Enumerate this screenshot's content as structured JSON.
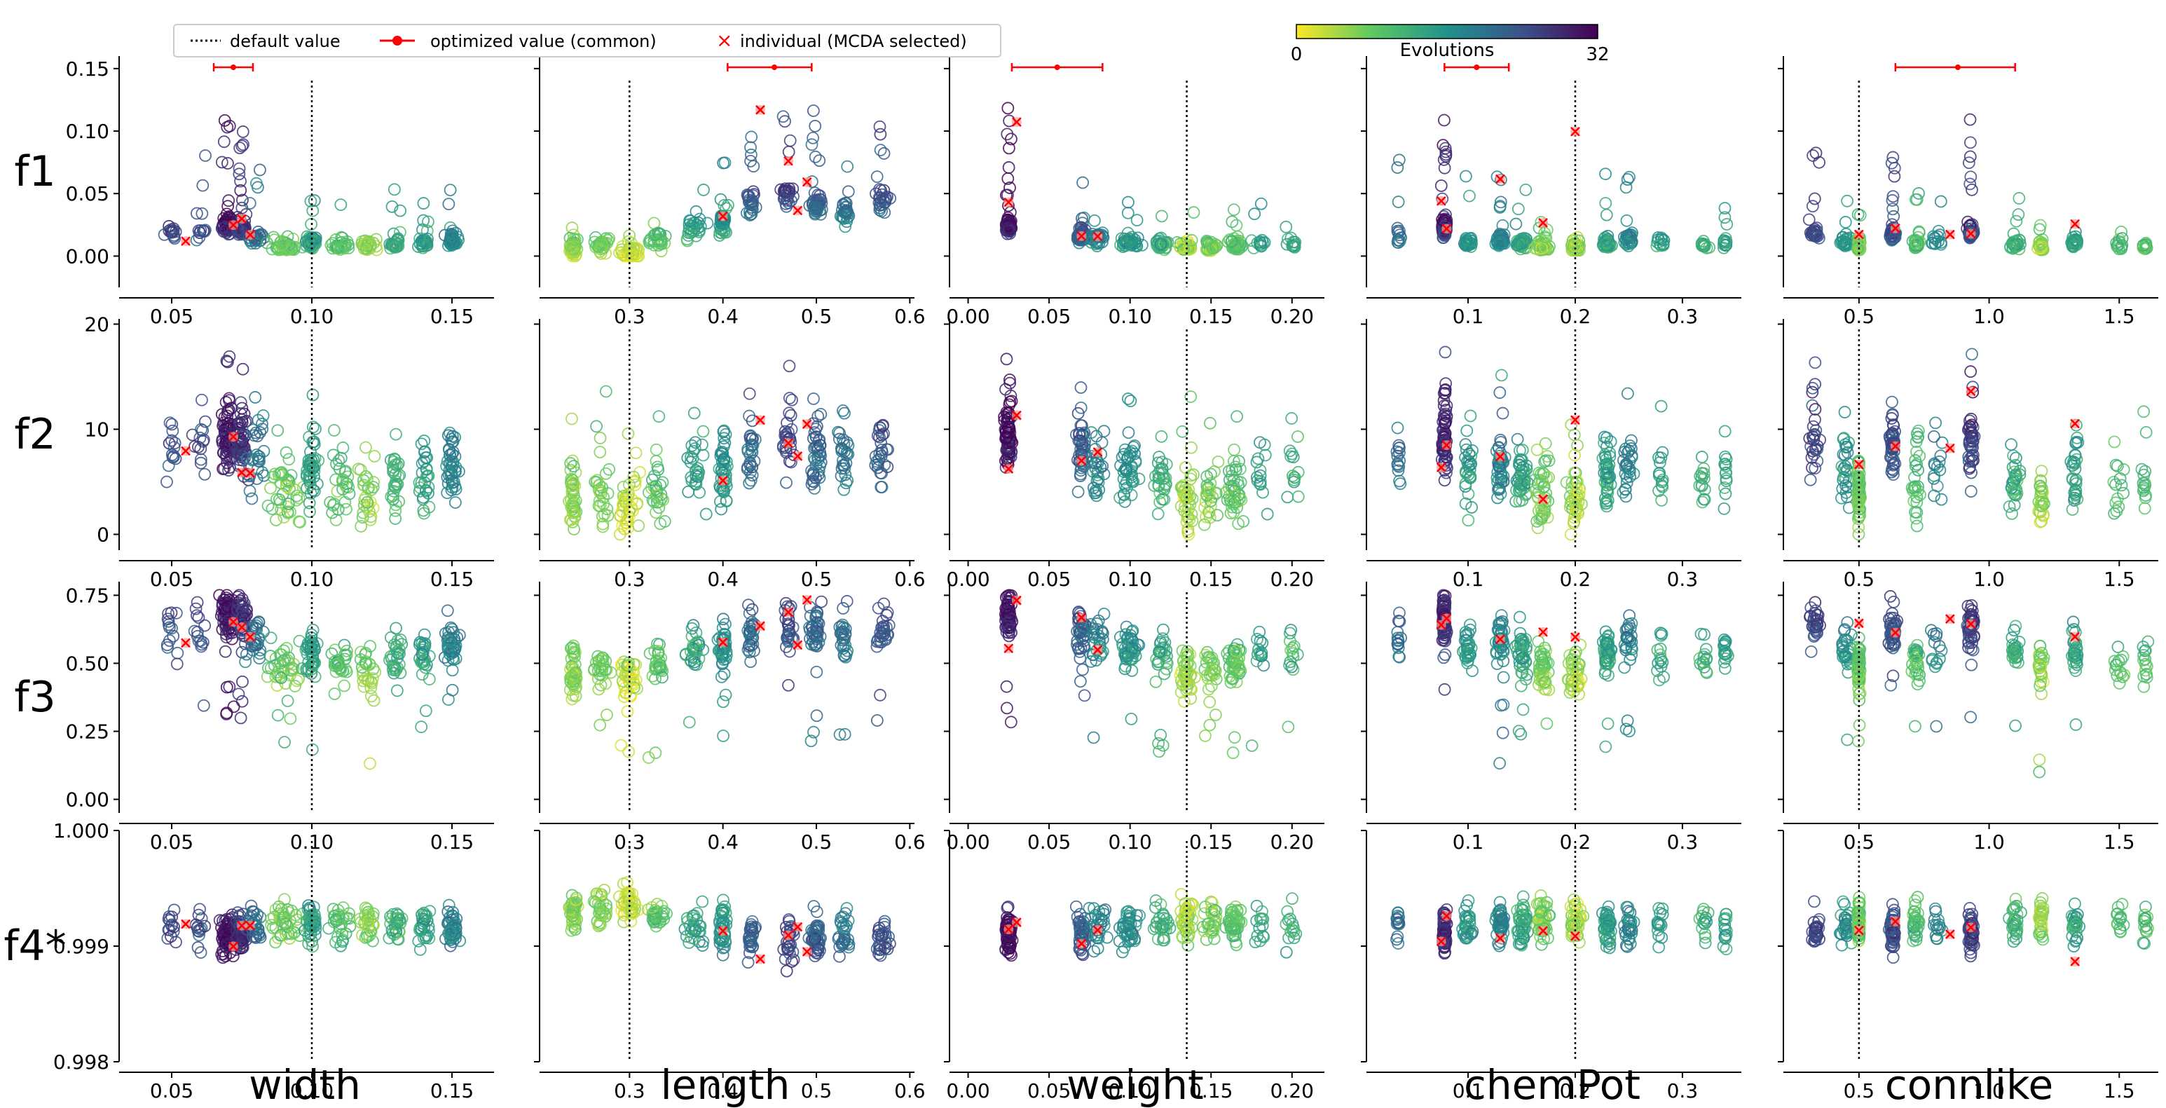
{
  "chart_data": {
    "type": "scatter",
    "legend": {
      "placement": "top-left",
      "default_label": "default value",
      "optimized_label": "optimized value (common)",
      "individual_label": "individual (MCDA selected)"
    },
    "colorbar": {
      "label": "Evolutions",
      "min_label": "0",
      "max_label": "32",
      "range": [
        0,
        32
      ],
      "colormap": [
        "#fde725",
        "#5ec962",
        "#21918c",
        "#3b528b",
        "#440154"
      ]
    },
    "colors": {
      "default_line": "#000000",
      "optimized": "#ff0000",
      "individual": "#ff0000"
    },
    "columns": [
      {
        "label": "width",
        "xlim": [
          0.035,
          0.165
        ],
        "ticks": [
          0.05,
          0.1,
          0.15
        ],
        "tick_labels": [
          "0.05",
          "0.10",
          "0.15"
        ],
        "default": 0.1,
        "optimized": {
          "value": 0.072,
          "low": 0.065,
          "high": 0.079
        }
      },
      {
        "label": "length",
        "xlim": [
          0.215,
          0.605
        ],
        "ticks": [
          0.3,
          0.4,
          0.5,
          0.6
        ],
        "tick_labels": [
          "0.3",
          "0.4",
          "0.5",
          "0.6"
        ],
        "default": 0.3,
        "optimized": {
          "value": 0.455,
          "low": 0.405,
          "high": 0.495
        }
      },
      {
        "label": "weight",
        "xlim": [
          -0.005,
          0.22
        ],
        "ticks": [
          0.0,
          0.05,
          0.1,
          0.15,
          0.2
        ],
        "tick_labels": [
          "0.00",
          "0.05",
          "0.10",
          "0.15",
          "0.20"
        ],
        "default": 0.135,
        "optimized": {
          "value": 0.055,
          "low": 0.027,
          "high": 0.083
        }
      },
      {
        "label": "chemPot",
        "xlim": [
          0.015,
          0.355
        ],
        "ticks": [
          0.1,
          0.2,
          0.3
        ],
        "tick_labels": [
          "0.1",
          "0.2",
          "0.3"
        ],
        "default": 0.2,
        "optimized": {
          "value": 0.108,
          "low": 0.078,
          "high": 0.138
        }
      },
      {
        "label": "connlike",
        "xlim": [
          0.25,
          1.65
        ],
        "ticks": [
          0.5,
          1.0,
          1.5
        ],
        "tick_labels": [
          "0.5",
          "1.0",
          "1.5"
        ],
        "default": 0.5,
        "optimized": {
          "value": 0.88,
          "low": 0.64,
          "high": 1.1
        }
      }
    ],
    "rows": [
      {
        "label": "f1",
        "ylim": [
          -0.025,
          0.16
        ],
        "ticks": [
          0.0,
          0.05,
          0.1,
          0.15
        ],
        "tick_labels": [
          "0.00",
          "0.05",
          "0.10",
          "0.15"
        ]
      },
      {
        "label": "f2",
        "ylim": [
          -1.5,
          20.5
        ],
        "ticks": [
          0,
          10,
          20
        ],
        "tick_labels": [
          "0",
          "10",
          "20"
        ]
      },
      {
        "label": "f3",
        "ylim": [
          -0.05,
          0.8
        ],
        "ticks": [
          0.0,
          0.25,
          0.5,
          0.75
        ],
        "tick_labels": [
          "0.00",
          "0.25",
          "0.50",
          "0.75"
        ]
      },
      {
        "label": "f4*",
        "ylim": [
          0.998,
          1.0
        ],
        "ticks": [
          0.998,
          0.999,
          1.0
        ],
        "tick_labels": [
          "0.998",
          "0.999",
          "1.000"
        ]
      }
    ],
    "clusters": [
      {
        "x": [
          0.05,
          0.06,
          0.07,
          0.075,
          0.08,
          0.09,
          0.1,
          0.11,
          0.12,
          0.13,
          0.14,
          0.15
        ],
        "evo": [
          25,
          24,
          30,
          27,
          20,
          8,
          14,
          10,
          6,
          12,
          14,
          18
        ],
        "sd": [
          0.002,
          0.002,
          0.002,
          0.002,
          0.003,
          0.006,
          0.002,
          0.004,
          0.003,
          0.002,
          0.002,
          0.002
        ],
        "w": [
          1,
          1,
          5,
          4,
          2,
          3,
          3,
          2,
          2,
          2,
          2,
          3
        ]
      },
      {
        "x": [
          0.24,
          0.27,
          0.3,
          0.33,
          0.37,
          0.4,
          0.43,
          0.47,
          0.5,
          0.53,
          0.57
        ],
        "evo": [
          6,
          7,
          3,
          9,
          14,
          16,
          22,
          25,
          22,
          20,
          24
        ],
        "sd": [
          0.004,
          0.008,
          0.01,
          0.008,
          0.01,
          0.004,
          0.004,
          0.006,
          0.006,
          0.006,
          0.008
        ],
        "w": [
          3,
          2,
          3,
          2,
          2,
          3,
          2,
          2,
          3,
          2,
          2
        ]
      },
      {
        "x": [
          0.025,
          0.07,
          0.08,
          0.1,
          0.12,
          0.135,
          0.15,
          0.165,
          0.18,
          0.2
        ],
        "evo": [
          30,
          23,
          18,
          16,
          12,
          5,
          7,
          9,
          14,
          12
        ],
        "sd": [
          0.002,
          0.003,
          0.005,
          0.006,
          0.005,
          0.004,
          0.004,
          0.005,
          0.004,
          0.004
        ],
        "w": [
          5,
          3,
          2,
          3,
          2,
          3,
          2,
          3,
          1,
          1
        ]
      },
      {
        "x": [
          0.035,
          0.078,
          0.1,
          0.13,
          0.15,
          0.17,
          0.2,
          0.23,
          0.25,
          0.28,
          0.32,
          0.34
        ],
        "evo": [
          21,
          28,
          15,
          18,
          14,
          7,
          5,
          14,
          18,
          14,
          12,
          14
        ],
        "sd": [
          0.002,
          0.002,
          0.004,
          0.004,
          0.005,
          0.006,
          0.006,
          0.004,
          0.005,
          0.004,
          0.004,
          0.002
        ],
        "w": [
          1,
          5,
          2,
          3,
          3,
          3,
          3,
          3,
          2,
          1,
          1,
          1
        ]
      },
      {
        "x": [
          0.33,
          0.45,
          0.5,
          0.63,
          0.72,
          0.8,
          0.93,
          1.1,
          1.2,
          1.33,
          1.5,
          1.6
        ],
        "evo": [
          26,
          16,
          8,
          24,
          10,
          18,
          26,
          12,
          6,
          14,
          10,
          10
        ],
        "sd": [
          0.02,
          0.02,
          0.005,
          0.012,
          0.015,
          0.02,
          0.012,
          0.02,
          0.01,
          0.012,
          0.02,
          0.01
        ],
        "w": [
          2,
          2,
          4,
          3,
          2,
          1,
          3,
          2,
          2,
          2,
          1,
          1
        ]
      }
    ],
    "individual": [
      [
        0.055,
        0.072,
        0.075,
        0.078
      ],
      [
        0.4,
        0.44,
        0.47,
        0.48,
        0.49
      ],
      [
        0.025,
        0.03,
        0.07,
        0.08
      ],
      [
        0.075,
        0.08,
        0.13,
        0.17,
        0.2
      ],
      [
        0.5,
        0.64,
        0.85,
        0.93,
        1.33
      ]
    ]
  }
}
